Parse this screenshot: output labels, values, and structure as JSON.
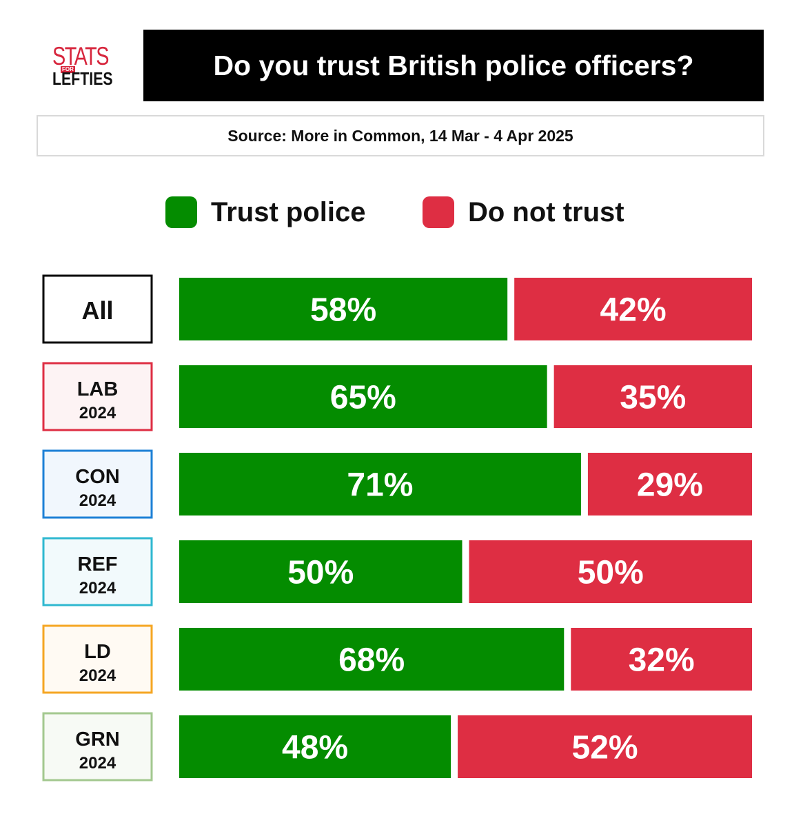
{
  "logo": {
    "top": "STATS",
    "small": "FOR",
    "bottom": "LEFTIES"
  },
  "header": {
    "title": "Do you trust British police officers?"
  },
  "source": "Source: More in Common, 14 Mar - 4 Apr 2025",
  "colors": {
    "trust": "#048c00",
    "distrust": "#de2e43"
  },
  "chart_data": {
    "type": "bar",
    "orientation": "horizontal",
    "stacked": true,
    "title": "Do you trust British police officers?",
    "legend_position": "top",
    "categories": [
      {
        "label": "All",
        "sub": "",
        "border": "#000000",
        "fill": "#ffffff"
      },
      {
        "label": "LAB",
        "sub": "2024",
        "border": "#de2e43",
        "fill": "#fdf3f4"
      },
      {
        "label": "CON",
        "sub": "2024",
        "border": "#1d80d6",
        "fill": "#f1f7fd"
      },
      {
        "label": "REF",
        "sub": "2024",
        "border": "#2fb8d0",
        "fill": "#f2fafc"
      },
      {
        "label": "LD",
        "sub": "2024",
        "border": "#f5a623",
        "fill": "#fffaf3"
      },
      {
        "label": "GRN",
        "sub": "2024",
        "border": "#a3c88f",
        "fill": "#f7faf5"
      }
    ],
    "series": [
      {
        "name": "Trust police",
        "color": "#048c00",
        "values": [
          58,
          65,
          71,
          50,
          68,
          48
        ]
      },
      {
        "name": "Do not trust",
        "color": "#de2e43",
        "values": [
          42,
          35,
          29,
          50,
          32,
          52
        ]
      }
    ],
    "value_suffix": "%"
  }
}
